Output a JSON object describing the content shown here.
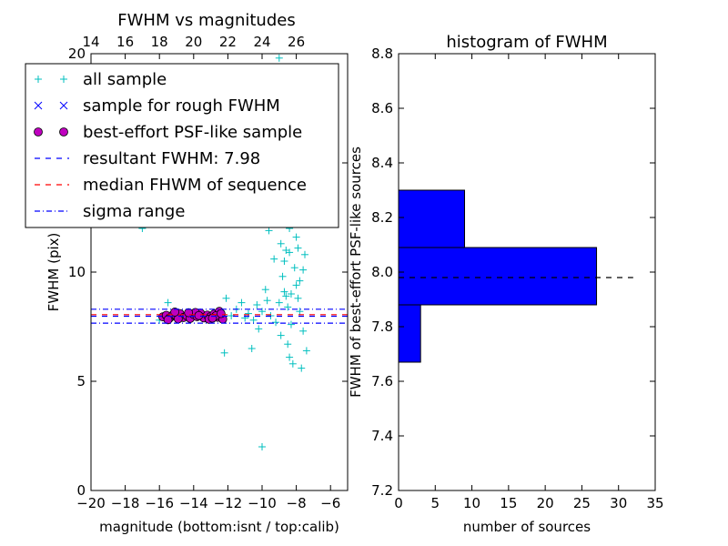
{
  "chart_data": [
    {
      "type": "scatter",
      "title": "FWHM vs magnitudes",
      "xlabel": "magnitude (bottom:isnt / top:calib)",
      "ylabel": "FWHM (pix)",
      "xlim": [
        -20,
        -5
      ],
      "ylim": [
        0,
        20
      ],
      "x_ticks": [
        "−20",
        "−18",
        "−16",
        "−14",
        "−12",
        "−10",
        "−8",
        "−6"
      ],
      "x_tick_values": [
        -20,
        -18,
        -16,
        -14,
        -12,
        -10,
        -8,
        -6
      ],
      "y_ticks": [
        "0",
        "5",
        "10",
        "15",
        "20"
      ],
      "y_tick_values": [
        0,
        5,
        10,
        15,
        20
      ],
      "top_axis": {
        "ticks": [
          "14",
          "16",
          "18",
          "20",
          "22",
          "24",
          "26"
        ],
        "tick_values": [
          14,
          16,
          18,
          20,
          22,
          24,
          26
        ],
        "offset": 34
      },
      "legend": {
        "placement": "upper-left",
        "entries": [
          {
            "label": "all sample",
            "marker": "plus",
            "color": "#00BFBF"
          },
          {
            "label": "sample for rough FWHM",
            "marker": "x",
            "color": "#0000FF"
          },
          {
            "label": "best-effort PSF-like sample",
            "marker": "circle",
            "color": "#BF00BF"
          },
          {
            "label": "resultant FWHM: 7.98",
            "marker": "dashed",
            "color": "#0000FF"
          },
          {
            "label": "median FHWM of sequence",
            "marker": "dashed",
            "color": "#FF0000"
          },
          {
            "label": "sigma range",
            "marker": "dashdot",
            "color": "#0000FF"
          }
        ]
      },
      "hlines": [
        {
          "y": 7.98,
          "style": "dashed",
          "color": "#0000FF"
        },
        {
          "y": 8.05,
          "style": "dashed",
          "color": "#FF0000"
        },
        {
          "y": 8.3,
          "style": "dashdot",
          "color": "#0000FF"
        },
        {
          "y": 7.66,
          "style": "dashdot",
          "color": "#0000FF"
        }
      ],
      "series": [
        {
          "marker": "plus",
          "color": "#00BFBF",
          "points": [
            [
              -16.0,
              7.8
            ],
            [
              -15.5,
              8.6
            ],
            [
              -15.0,
              8.1
            ],
            [
              -14.5,
              7.9
            ],
            [
              -14.0,
              8.1
            ],
            [
              -13.5,
              8.0
            ],
            [
              -13.0,
              7.9
            ],
            [
              -12.5,
              8.2
            ],
            [
              -12.2,
              6.3
            ],
            [
              -12.1,
              8.8
            ],
            [
              -11.8,
              8.0
            ],
            [
              -11.5,
              8.3
            ],
            [
              -11.0,
              7.9
            ],
            [
              -10.8,
              8.1
            ],
            [
              -10.5,
              7.8
            ],
            [
              -10.3,
              8.5
            ],
            [
              -10.0,
              8.2
            ],
            [
              -10.0,
              2.0
            ],
            [
              -9.8,
              9.2
            ],
            [
              -9.5,
              8.0
            ],
            [
              -9.2,
              7.7
            ],
            [
              -9.0,
              8.6
            ],
            [
              -8.8,
              9.8
            ],
            [
              -8.7,
              10.5
            ],
            [
              -8.6,
              11.0
            ],
            [
              -8.5,
              8.4
            ],
            [
              -8.4,
              12.0
            ],
            [
              -8.3,
              9.0
            ],
            [
              -8.2,
              13.2
            ],
            [
              -8.1,
              10.2
            ],
            [
              -8.0,
              11.6
            ],
            [
              -7.9,
              8.8
            ],
            [
              -7.8,
              9.6
            ],
            [
              -7.7,
              12.4
            ],
            [
              -7.6,
              7.3
            ],
            [
              -7.5,
              10.8
            ],
            [
              -7.4,
              6.4
            ],
            [
              -8.5,
              6.7
            ],
            [
              -8.2,
              5.8
            ],
            [
              -7.7,
              5.6
            ],
            [
              -9.1,
              12.9
            ],
            [
              -8.9,
              11.3
            ],
            [
              -8.6,
              13.8
            ],
            [
              -8.4,
              10.9
            ],
            [
              -8.1,
              12.7
            ],
            [
              -7.9,
              11.1
            ],
            [
              -9.3,
              10.6
            ],
            [
              -8.7,
              9.1
            ],
            [
              -8.3,
              14.8
            ],
            [
              -8.0,
              9.4
            ],
            [
              -7.8,
              8.2
            ],
            [
              -9.6,
              11.9
            ],
            [
              -10.2,
              7.4
            ],
            [
              -8.9,
              7.1
            ],
            [
              -8.6,
              8.9
            ],
            [
              -8.3,
              7.6
            ],
            [
              -9.0,
              19.8
            ],
            [
              -8.8,
              15.6
            ],
            [
              -8.5,
              16.2
            ],
            [
              -8.2,
              17.4
            ],
            [
              -10.6,
              6.5
            ],
            [
              -11.2,
              8.6
            ],
            [
              -9.4,
              14.1
            ],
            [
              -8.0,
              13.5
            ],
            [
              -7.6,
              10.1
            ],
            [
              -7.9,
              14.4
            ],
            [
              -17.0,
              12.0
            ],
            [
              -8.4,
              6.1
            ],
            [
              -9.7,
              8.7
            ],
            [
              -10.1,
              12.2
            ]
          ]
        },
        {
          "marker": "circle",
          "color": "#BF00BF",
          "points": [
            [
              -15.8,
              7.95
            ],
            [
              -15.6,
              8.02
            ],
            [
              -15.4,
              7.9
            ],
            [
              -15.2,
              8.05
            ],
            [
              -15.0,
              7.98
            ],
            [
              -14.8,
              8.1
            ],
            [
              -14.6,
              7.92
            ],
            [
              -14.4,
              8.0
            ],
            [
              -14.2,
              7.88
            ],
            [
              -14.0,
              8.06
            ],
            [
              -13.8,
              7.96
            ],
            [
              -13.6,
              8.12
            ],
            [
              -13.4,
              7.9
            ],
            [
              -13.2,
              8.03
            ],
            [
              -13.0,
              7.97
            ],
            [
              -12.8,
              8.08
            ],
            [
              -12.6,
              7.93
            ],
            [
              -12.5,
              8.2
            ],
            [
              -12.4,
              7.98
            ],
            [
              -12.3,
              7.85
            ],
            [
              -14.9,
              7.86
            ],
            [
              -13.9,
              8.15
            ],
            [
              -13.1,
              7.84
            ],
            [
              -12.7,
              8.0
            ],
            [
              -15.5,
              7.82
            ],
            [
              -14.3,
              8.14
            ],
            [
              -13.7,
              8.01
            ],
            [
              -12.9,
              7.89
            ],
            [
              -15.1,
              8.17
            ],
            [
              -12.4,
              8.1
            ]
          ]
        }
      ]
    },
    {
      "type": "bar",
      "title": "histogram of FWHM",
      "xlabel": "number of sources",
      "ylabel": "FWHM of best-effort PSF-like sources",
      "xlim": [
        0,
        35
      ],
      "ylim": [
        7.2,
        8.8
      ],
      "x_ticks": [
        "0",
        "5",
        "10",
        "15",
        "20",
        "25",
        "30",
        "35"
      ],
      "x_tick_values": [
        0,
        5,
        10,
        15,
        20,
        25,
        30,
        35
      ],
      "y_ticks": [
        "7.2",
        "7.4",
        "7.6",
        "7.8",
        "8.0",
        "8.2",
        "8.4",
        "8.6",
        "8.8"
      ],
      "y_tick_values": [
        7.2,
        7.4,
        7.6,
        7.8,
        8.0,
        8.2,
        8.4,
        8.6,
        8.8
      ],
      "orientation": "horizontal",
      "color": "#0000FF",
      "bins": [
        {
          "low": 7.67,
          "high": 7.88,
          "count": 3
        },
        {
          "low": 7.88,
          "high": 8.09,
          "count": 27
        },
        {
          "low": 8.09,
          "high": 8.3,
          "count": 9
        }
      ],
      "hline": {
        "y": 7.98,
        "style": "dashed",
        "color": "#000000",
        "xrange": [
          0,
          32
        ]
      }
    }
  ]
}
